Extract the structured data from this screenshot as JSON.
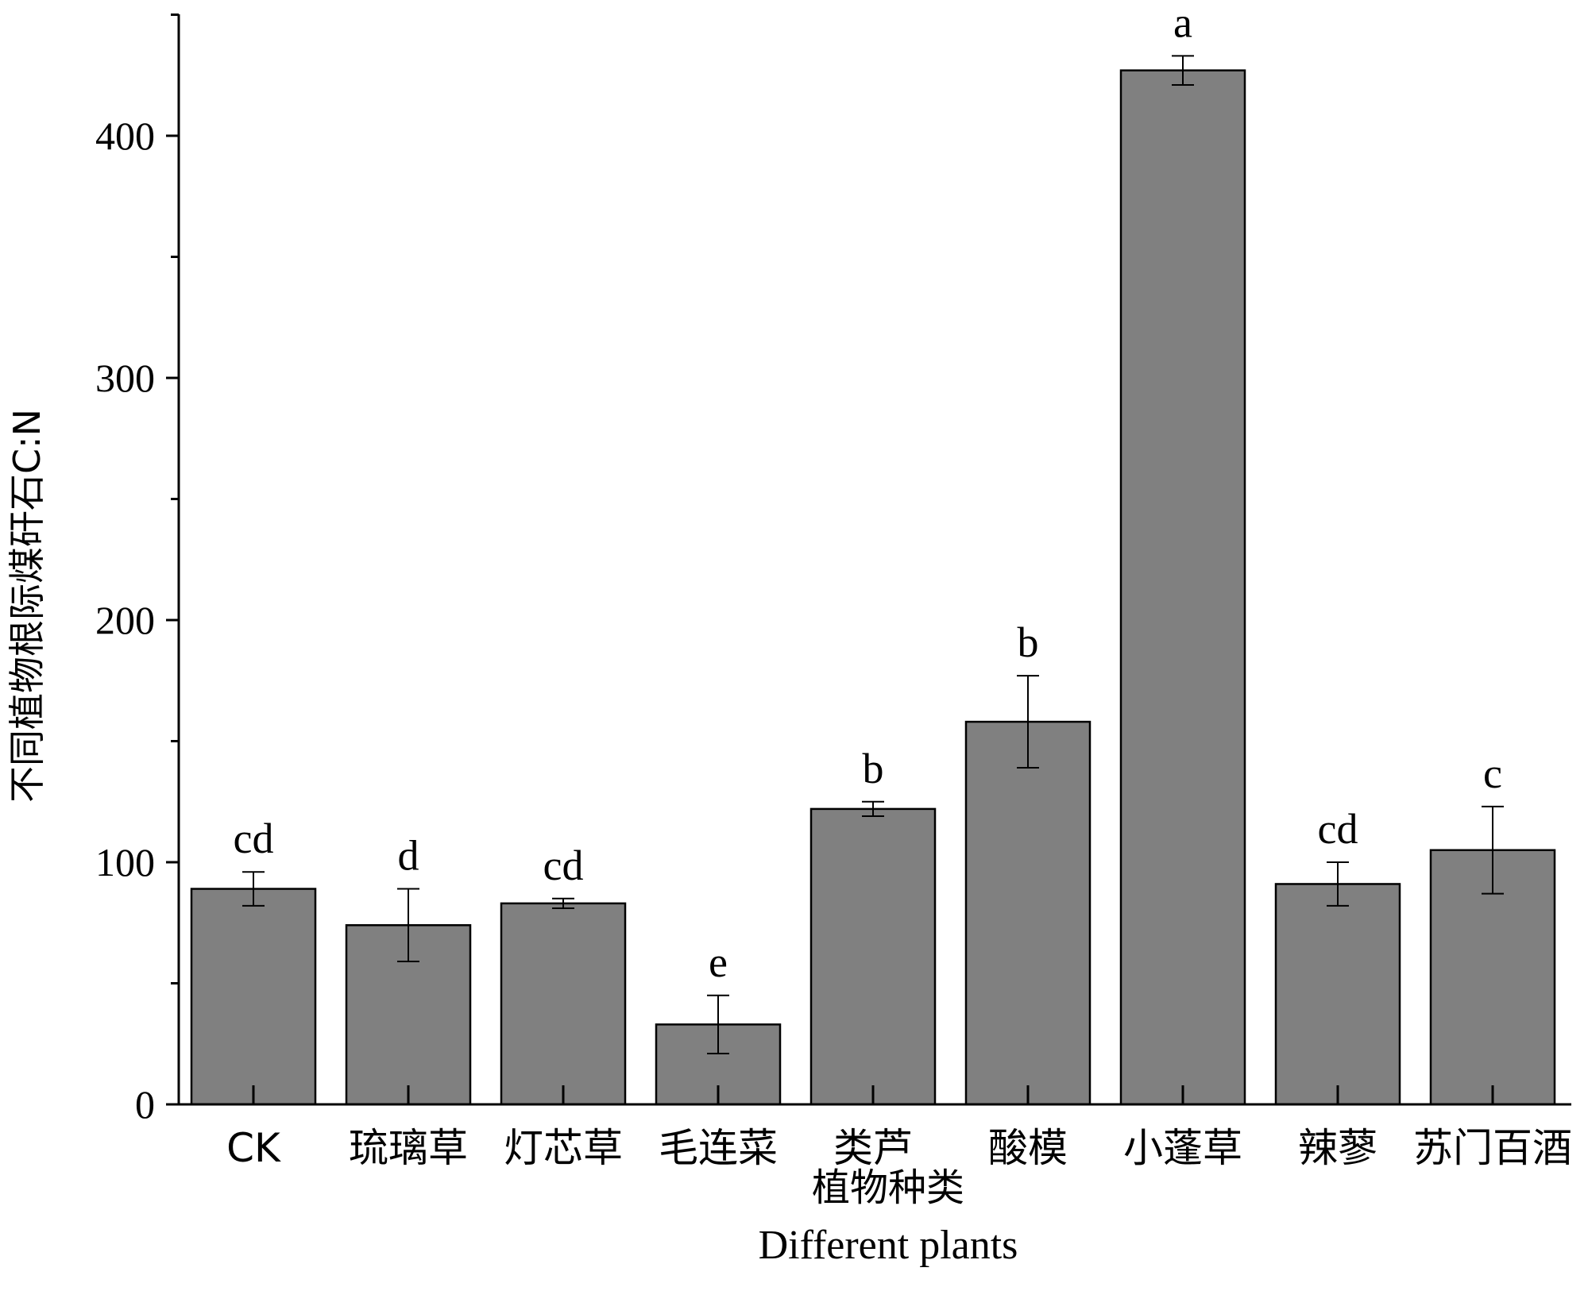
{
  "chart_data": {
    "type": "bar",
    "title": "",
    "categories": [
      "CK",
      "琉璃草",
      "灯芯草",
      "毛连菜",
      "类芦",
      "酸模",
      "小蓬草",
      "辣蓼",
      "苏门百酒"
    ],
    "values": [
      89,
      74,
      83,
      33,
      122,
      158,
      427,
      91,
      105
    ],
    "errors": [
      7,
      15,
      2,
      12,
      3,
      19,
      6,
      9,
      18
    ],
    "significance": [
      "cd",
      "d",
      "cd",
      "e",
      "b",
      "b",
      "a",
      "cd",
      "c"
    ],
    "xlabel": "植物种类",
    "xlabel_en": "Different plants",
    "ylabel": "不同植物根际煤矸石C:N",
    "ylim": [
      0,
      450
    ],
    "yticks": [
      "0",
      "100",
      "200",
      "300",
      "400"
    ],
    "bar_color": "#808080",
    "grid": false
  }
}
